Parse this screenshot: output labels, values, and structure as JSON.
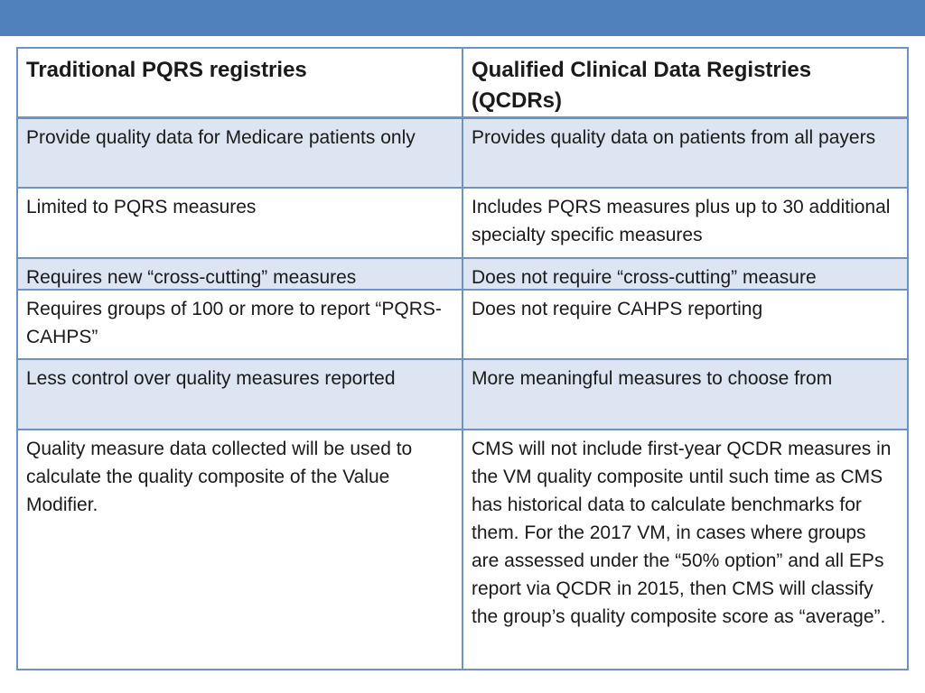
{
  "colors": {
    "accent-bar": "#5081BD",
    "table-border": "#6D92C4",
    "row-shade": "#DCE5F1",
    "text": "#1a1a1a"
  },
  "table": {
    "header": {
      "left": "Traditional PQRS registries",
      "right": "Qualified Clinical Data Registries (QCDRs)"
    },
    "rows": [
      {
        "left": "Provide quality data for Medicare patients only",
        "right": "Provides quality data on patients from all payers"
      },
      {
        "left": "Limited to PQRS measures",
        "right": "Includes PQRS measures plus up to 30 additional specialty specific measures"
      },
      {
        "left": "Requires new “cross-cutting” measures",
        "right": "Does not require “cross-cutting” measure"
      },
      {
        "left": "Requires groups of 100 or more to report “PQRS-CAHPS”",
        "right": "Does not require CAHPS reporting"
      },
      {
        "left": "Less control over quality measures reported",
        "right": "More meaningful measures to choose from"
      },
      {
        "left": "Quality measure data collected will be used to calculate the quality composite of the Value Modifier.",
        "right": "CMS will not include first-year QCDR measures in the VM quality composite until such time as CMS has historical data to calculate benchmarks for them. For the 2017 VM, in cases where groups are assessed under the “50% option” and all EPs report via QCDR in 2015, then CMS will classify the group’s quality composite score as “average”."
      }
    ]
  }
}
